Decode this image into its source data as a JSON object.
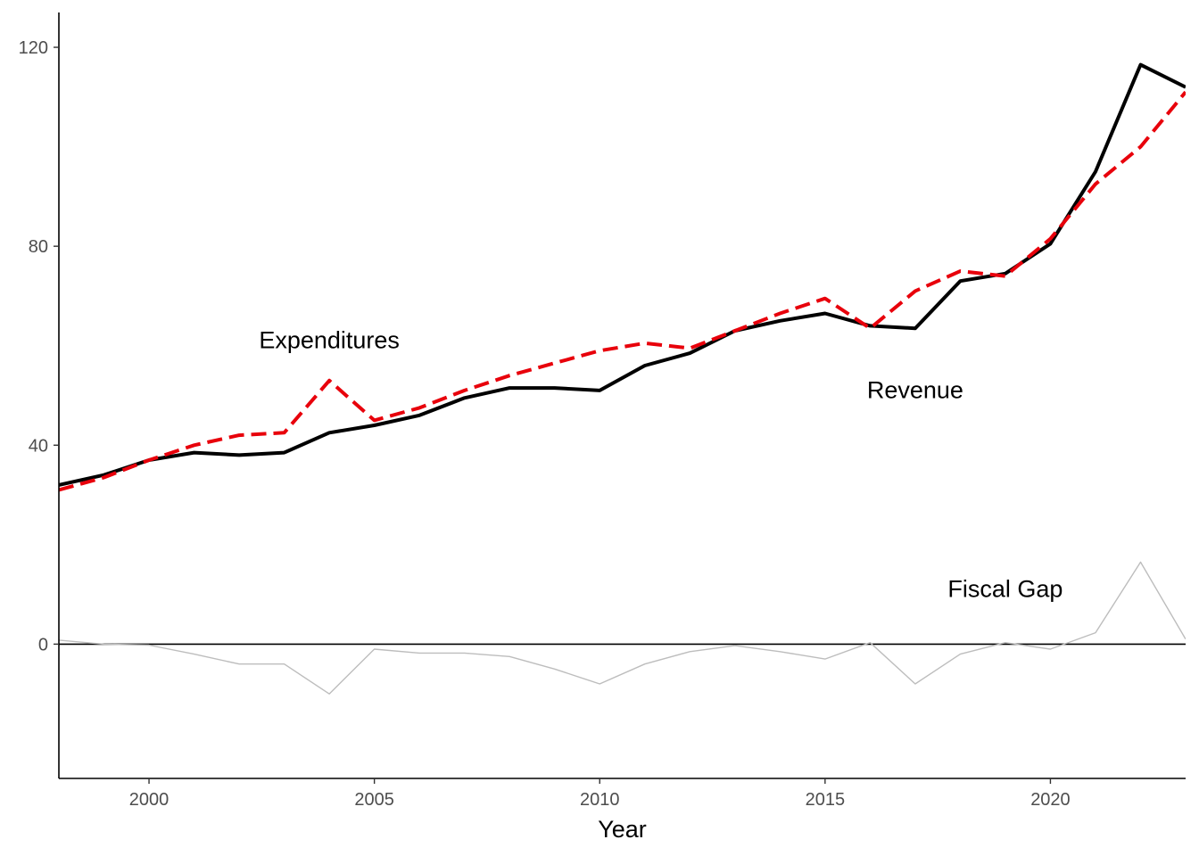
{
  "chart_data": {
    "type": "line",
    "title": "",
    "xlabel": "Year",
    "ylabel": "",
    "xlim": [
      1998,
      2023
    ],
    "ylim": [
      -27,
      127
    ],
    "x_ticks": [
      2000,
      2005,
      2010,
      2015,
      2020
    ],
    "y_ticks": [
      0,
      40,
      80,
      120
    ],
    "grid": false,
    "legend": "none",
    "x": [
      1998,
      1999,
      2000,
      2001,
      2002,
      2003,
      2004,
      2005,
      2006,
      2007,
      2008,
      2009,
      2010,
      2011,
      2012,
      2013,
      2014,
      2015,
      2016,
      2017,
      2018,
      2019,
      2020,
      2021,
      2022,
      2023
    ],
    "series": [
      {
        "key": "revenue",
        "color": "#000000",
        "style": "solid",
        "values": [
          32.0,
          34.0,
          37.0,
          38.5,
          38.0,
          38.5,
          42.5,
          44.0,
          46.0,
          49.5,
          51.5,
          51.5,
          51.0,
          56.0,
          58.5,
          63.0,
          65.0,
          66.5,
          64.0,
          63.5,
          73.0,
          74.5,
          80.5,
          95.0,
          116.5,
          112.0
        ]
      },
      {
        "key": "expenditures",
        "color": "#e8000b",
        "style": "dashed",
        "values": [
          31.0,
          33.5,
          37.0,
          40.0,
          42.0,
          42.5,
          53.0,
          45.0,
          47.5,
          51.0,
          54.0,
          56.5,
          59.0,
          60.5,
          59.5,
          63.0,
          66.5,
          69.5,
          63.5,
          71.0,
          75.0,
          74.0,
          81.5,
          92.5,
          100.0,
          111.0
        ]
      },
      {
        "key": "fiscal_gap",
        "color": "#bdbdbd",
        "style": "thin",
        "values": [
          0.8,
          0.0,
          -0.2,
          -2.0,
          -4.0,
          -4.0,
          -10.0,
          -1.0,
          -1.8,
          -1.8,
          -2.5,
          -5.0,
          -8.0,
          -4.0,
          -1.5,
          -0.3,
          -1.5,
          -3.0,
          0.3,
          -8.0,
          -2.0,
          0.3,
          -1.0,
          2.3,
          16.5,
          1.0
        ]
      }
    ],
    "zero_line": 0,
    "annotations": [
      {
        "text": "Expenditures",
        "x": 2004.0,
        "y": 59.5
      },
      {
        "text": "Revenue",
        "x": 2017.0,
        "y": 49.5
      },
      {
        "text": "Fiscal Gap",
        "x": 2019.0,
        "y": 9.5
      }
    ]
  }
}
